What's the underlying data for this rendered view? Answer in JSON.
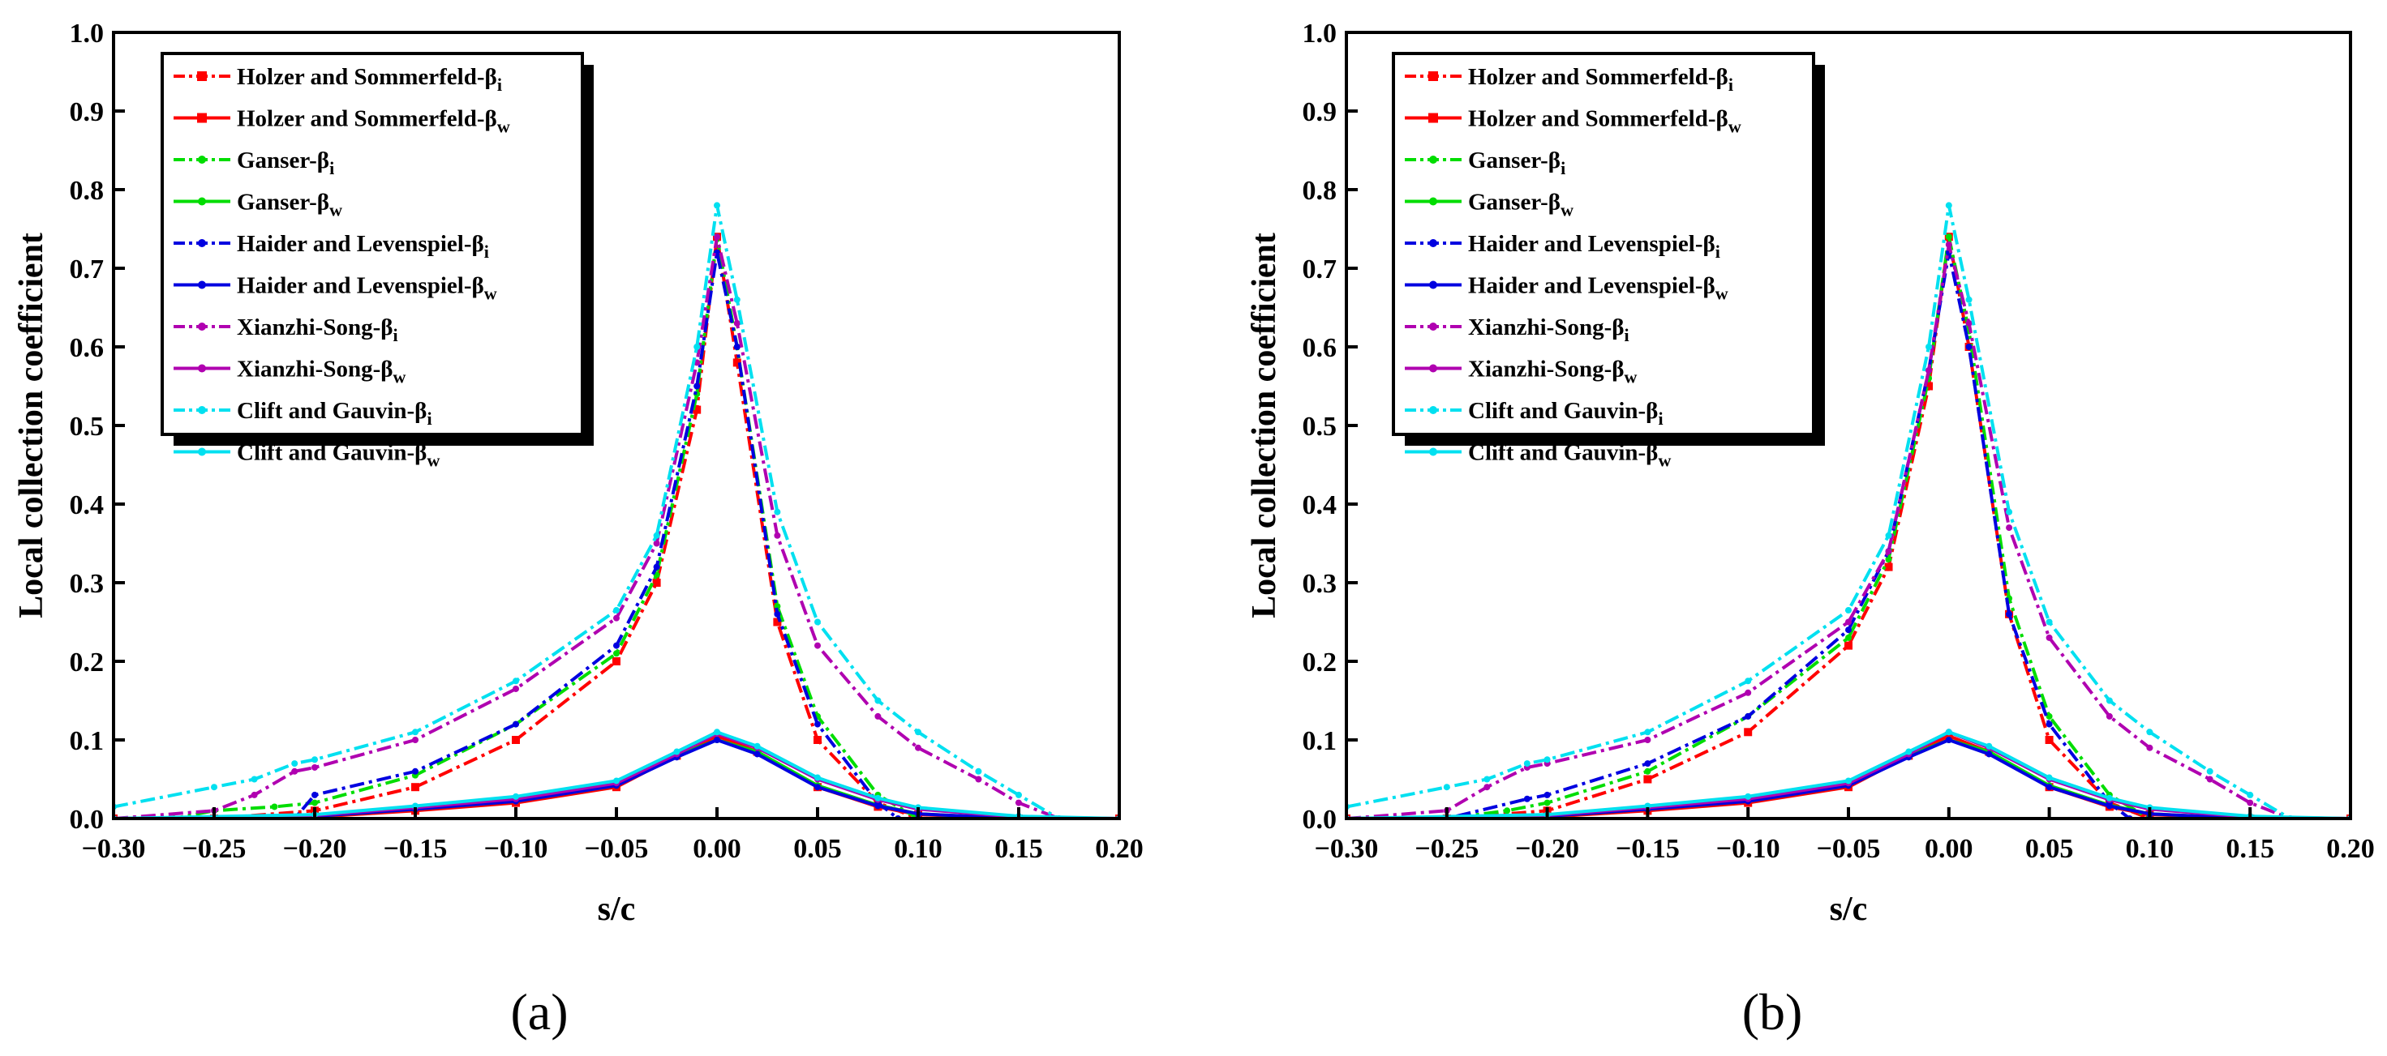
{
  "chart_data": [
    {
      "panel_label": "(a)",
      "type": "line",
      "xlabel": "s/c",
      "ylabel": "Local collection coefficient",
      "xlim": [
        -0.3,
        0.2
      ],
      "ylim": [
        0.0,
        1.0
      ],
      "xticks": [
        "−0.30",
        "−0.25",
        "−0.20",
        "−0.15",
        "−0.10",
        "−0.05",
        "0.00",
        "0.05",
        "0.10",
        "0.15",
        "0.20"
      ],
      "yticks": [
        "0.0",
        "0.1",
        "0.2",
        "0.3",
        "0.4",
        "0.5",
        "0.6",
        "0.7",
        "0.8",
        "0.9",
        "1.0"
      ],
      "legend_position": "top-left",
      "series": [
        {
          "name": "Holzer and Sommerfeld-β",
          "sub": "i",
          "color": "#ff0000",
          "style": "dashdot",
          "marker": "square",
          "x": [
            -0.3,
            -0.25,
            -0.2,
            -0.15,
            -0.1,
            -0.05,
            -0.03,
            -0.01,
            0.0,
            0.01,
            0.03,
            0.05,
            0.08,
            0.1,
            0.15,
            0.2
          ],
          "y": [
            0.0,
            0.0,
            0.01,
            0.04,
            0.1,
            0.2,
            0.3,
            0.52,
            0.74,
            0.58,
            0.25,
            0.1,
            0.02,
            0.0,
            0.0,
            0.0
          ]
        },
        {
          "name": "Holzer and Sommerfeld-β",
          "sub": "w",
          "color": "#ff0000",
          "style": "solid",
          "marker": "square",
          "x": [
            -0.3,
            -0.2,
            -0.15,
            -0.1,
            -0.05,
            -0.02,
            0.0,
            0.02,
            0.05,
            0.08,
            0.1,
            0.15,
            0.2
          ],
          "y": [
            0.0,
            0.002,
            0.01,
            0.02,
            0.04,
            0.08,
            0.105,
            0.085,
            0.04,
            0.015,
            0.005,
            0.0,
            0.0
          ]
        },
        {
          "name": "Ganser-β",
          "sub": "i",
          "color": "#00dd00",
          "style": "dashdot",
          "marker": "dot",
          "x": [
            -0.3,
            -0.27,
            -0.25,
            -0.22,
            -0.2,
            -0.15,
            -0.1,
            -0.05,
            -0.03,
            -0.01,
            0.0,
            0.01,
            0.03,
            0.05,
            0.08,
            0.1,
            0.15,
            0.2
          ],
          "y": [
            0.0,
            0.0,
            0.01,
            0.015,
            0.02,
            0.055,
            0.12,
            0.21,
            0.31,
            0.54,
            0.74,
            0.6,
            0.27,
            0.13,
            0.03,
            0.0,
            0.0,
            0.0
          ]
        },
        {
          "name": "Ganser-β",
          "sub": "w",
          "color": "#00dd00",
          "style": "solid",
          "marker": "dot",
          "x": [
            -0.3,
            -0.2,
            -0.15,
            -0.1,
            -0.05,
            -0.02,
            0.0,
            0.02,
            0.05,
            0.08,
            0.1,
            0.15,
            0.2
          ],
          "y": [
            0.0,
            0.003,
            0.012,
            0.022,
            0.042,
            0.08,
            0.1,
            0.085,
            0.042,
            0.017,
            0.006,
            0.0,
            0.0
          ]
        },
        {
          "name": "Haider and Levenspiel-β",
          "sub": "i",
          "color": "#0000e0",
          "style": "dashdot",
          "marker": "dot",
          "x": [
            -0.3,
            -0.25,
            -0.21,
            -0.2,
            -0.15,
            -0.1,
            -0.05,
            -0.03,
            -0.01,
            0.0,
            0.01,
            0.03,
            0.05,
            0.08,
            0.09,
            0.1,
            0.15,
            0.2
          ],
          "y": [
            0.0,
            0.0,
            0.0,
            0.03,
            0.06,
            0.12,
            0.22,
            0.32,
            0.55,
            0.72,
            0.6,
            0.26,
            0.12,
            0.02,
            0.0,
            0.0,
            0.0,
            0.0
          ]
        },
        {
          "name": "Haider and Levenspiel-β",
          "sub": "w",
          "color": "#0000e0",
          "style": "solid",
          "marker": "dot",
          "x": [
            -0.3,
            -0.2,
            -0.15,
            -0.1,
            -0.05,
            -0.02,
            0.0,
            0.02,
            0.05,
            0.08,
            0.1,
            0.15,
            0.2
          ],
          "y": [
            0.0,
            0.003,
            0.012,
            0.022,
            0.042,
            0.078,
            0.1,
            0.082,
            0.04,
            0.016,
            0.006,
            0.0,
            0.0
          ]
        },
        {
          "name": "Xianzhi-Song-β",
          "sub": "i",
          "color": "#b000b0",
          "style": "dashdot",
          "marker": "dot",
          "x": [
            -0.3,
            -0.25,
            -0.23,
            -0.21,
            -0.2,
            -0.15,
            -0.1,
            -0.05,
            -0.03,
            -0.01,
            0.0,
            0.01,
            0.03,
            0.05,
            0.08,
            0.1,
            0.13,
            0.15,
            0.17,
            0.2
          ],
          "y": [
            0.0,
            0.01,
            0.03,
            0.06,
            0.065,
            0.1,
            0.165,
            0.255,
            0.35,
            0.58,
            0.74,
            0.63,
            0.36,
            0.22,
            0.13,
            0.09,
            0.05,
            0.02,
            0.0,
            0.0
          ]
        },
        {
          "name": "Xianzhi-Song-β",
          "sub": "w",
          "color": "#b000b0",
          "style": "solid",
          "marker": "dot",
          "x": [
            -0.3,
            -0.2,
            -0.15,
            -0.1,
            -0.05,
            -0.02,
            0.0,
            0.02,
            0.05,
            0.08,
            0.1,
            0.15,
            0.2
          ],
          "y": [
            0.0,
            0.004,
            0.014,
            0.025,
            0.045,
            0.082,
            0.108,
            0.09,
            0.05,
            0.024,
            0.012,
            0.002,
            0.0
          ]
        },
        {
          "name": "Clift and Gauvin-β",
          "sub": "i",
          "color": "#00e0f0",
          "style": "dashdot",
          "marker": "dot",
          "x": [
            -0.3,
            -0.25,
            -0.23,
            -0.21,
            -0.2,
            -0.15,
            -0.1,
            -0.05,
            -0.03,
            -0.01,
            0.0,
            0.01,
            0.03,
            0.05,
            0.08,
            0.1,
            0.13,
            0.15,
            0.17,
            0.2
          ],
          "y": [
            0.015,
            0.04,
            0.05,
            0.07,
            0.075,
            0.11,
            0.175,
            0.265,
            0.36,
            0.6,
            0.78,
            0.66,
            0.39,
            0.25,
            0.15,
            0.11,
            0.06,
            0.03,
            0.0,
            0.0
          ]
        },
        {
          "name": "Clift and Gauvin-β",
          "sub": "w",
          "color": "#00e0f0",
          "style": "solid",
          "marker": "dot",
          "x": [
            -0.3,
            -0.2,
            -0.15,
            -0.1,
            -0.05,
            -0.02,
            0.0,
            0.02,
            0.05,
            0.08,
            0.1,
            0.15,
            0.2
          ],
          "y": [
            0.0,
            0.005,
            0.016,
            0.028,
            0.048,
            0.085,
            0.11,
            0.092,
            0.052,
            0.026,
            0.014,
            0.003,
            0.0
          ]
        }
      ]
    },
    {
      "panel_label": "(b)",
      "type": "line",
      "xlabel": "s/c",
      "ylabel": "Local collection coefficient",
      "xlim": [
        -0.3,
        0.2
      ],
      "ylim": [
        0.0,
        1.0
      ],
      "xticks": [
        "−0.30",
        "−0.25",
        "−0.20",
        "−0.15",
        "−0.10",
        "−0.05",
        "0.00",
        "0.05",
        "0.10",
        "0.15",
        "0.20"
      ],
      "yticks": [
        "0.0",
        "0.1",
        "0.2",
        "0.3",
        "0.4",
        "0.5",
        "0.6",
        "0.7",
        "0.8",
        "0.9",
        "1.0"
      ],
      "legend_position": "top-left",
      "series": [
        {
          "name": "Holzer and Sommerfeld-β",
          "sub": "i",
          "color": "#ff0000",
          "style": "dashdot",
          "marker": "square",
          "x": [
            -0.3,
            -0.25,
            -0.2,
            -0.15,
            -0.1,
            -0.05,
            -0.03,
            -0.01,
            0.0,
            0.01,
            0.03,
            0.05,
            0.08,
            0.1,
            0.15,
            0.2
          ],
          "y": [
            0.0,
            0.0,
            0.01,
            0.05,
            0.11,
            0.22,
            0.32,
            0.55,
            0.74,
            0.6,
            0.26,
            0.1,
            0.02,
            0.0,
            0.0,
            0.0
          ]
        },
        {
          "name": "Holzer and Sommerfeld-β",
          "sub": "w",
          "color": "#ff0000",
          "style": "solid",
          "marker": "square",
          "x": [
            -0.3,
            -0.2,
            -0.15,
            -0.1,
            -0.05,
            -0.02,
            0.0,
            0.02,
            0.05,
            0.08,
            0.1,
            0.15,
            0.2
          ],
          "y": [
            0.0,
            0.002,
            0.01,
            0.02,
            0.04,
            0.08,
            0.105,
            0.085,
            0.04,
            0.015,
            0.005,
            0.0,
            0.0
          ]
        },
        {
          "name": "Ganser-β",
          "sub": "i",
          "color": "#00dd00",
          "style": "dashdot",
          "marker": "dot",
          "x": [
            -0.3,
            -0.25,
            -0.22,
            -0.2,
            -0.15,
            -0.1,
            -0.05,
            -0.03,
            -0.01,
            0.0,
            0.01,
            0.03,
            0.05,
            0.08,
            0.1,
            0.15,
            0.2
          ],
          "y": [
            0.0,
            0.0,
            0.01,
            0.02,
            0.06,
            0.13,
            0.23,
            0.33,
            0.56,
            0.74,
            0.62,
            0.28,
            0.13,
            0.03,
            0.0,
            0.0,
            0.0
          ]
        },
        {
          "name": "Ganser-β",
          "sub": "w",
          "color": "#00dd00",
          "style": "solid",
          "marker": "dot",
          "x": [
            -0.3,
            -0.2,
            -0.15,
            -0.1,
            -0.05,
            -0.02,
            0.0,
            0.02,
            0.05,
            0.08,
            0.1,
            0.15,
            0.2
          ],
          "y": [
            0.0,
            0.003,
            0.012,
            0.022,
            0.042,
            0.08,
            0.1,
            0.085,
            0.042,
            0.017,
            0.006,
            0.0,
            0.0
          ]
        },
        {
          "name": "Haider and Levenspiel-β",
          "sub": "i",
          "color": "#0000e0",
          "style": "dashdot",
          "marker": "dot",
          "x": [
            -0.3,
            -0.25,
            -0.21,
            -0.2,
            -0.15,
            -0.1,
            -0.05,
            -0.03,
            -0.01,
            0.0,
            0.01,
            0.03,
            0.05,
            0.08,
            0.09,
            0.1,
            0.15,
            0.2
          ],
          "y": [
            0.0,
            0.0,
            0.025,
            0.03,
            0.07,
            0.13,
            0.24,
            0.34,
            0.57,
            0.72,
            0.6,
            0.26,
            0.12,
            0.02,
            0.0,
            0.0,
            0.0,
            0.0
          ]
        },
        {
          "name": "Haider and Levenspiel-β",
          "sub": "w",
          "color": "#0000e0",
          "style": "solid",
          "marker": "dot",
          "x": [
            -0.3,
            -0.2,
            -0.15,
            -0.1,
            -0.05,
            -0.02,
            0.0,
            0.02,
            0.05,
            0.08,
            0.1,
            0.15,
            0.2
          ],
          "y": [
            0.0,
            0.003,
            0.012,
            0.022,
            0.042,
            0.078,
            0.1,
            0.082,
            0.04,
            0.016,
            0.006,
            0.0,
            0.0
          ]
        },
        {
          "name": "Xianzhi-Song-β",
          "sub": "i",
          "color": "#b000b0",
          "style": "dashdot",
          "marker": "dot",
          "x": [
            -0.3,
            -0.25,
            -0.23,
            -0.21,
            -0.2,
            -0.15,
            -0.1,
            -0.05,
            -0.03,
            -0.01,
            0.0,
            0.01,
            0.03,
            0.05,
            0.08,
            0.1,
            0.13,
            0.15,
            0.17,
            0.2
          ],
          "y": [
            0.0,
            0.01,
            0.04,
            0.065,
            0.07,
            0.1,
            0.16,
            0.25,
            0.34,
            0.57,
            0.73,
            0.63,
            0.37,
            0.23,
            0.13,
            0.09,
            0.05,
            0.02,
            0.0,
            0.0
          ]
        },
        {
          "name": "Xianzhi-Song-β",
          "sub": "w",
          "color": "#b000b0",
          "style": "solid",
          "marker": "dot",
          "x": [
            -0.3,
            -0.2,
            -0.15,
            -0.1,
            -0.05,
            -0.02,
            0.0,
            0.02,
            0.05,
            0.08,
            0.1,
            0.15,
            0.2
          ],
          "y": [
            0.0,
            0.004,
            0.014,
            0.025,
            0.045,
            0.082,
            0.11,
            0.09,
            0.05,
            0.024,
            0.012,
            0.002,
            0.0
          ]
        },
        {
          "name": "Clift and Gauvin-β",
          "sub": "i",
          "color": "#00e0f0",
          "style": "dashdot",
          "marker": "dot",
          "x": [
            -0.3,
            -0.25,
            -0.23,
            -0.21,
            -0.2,
            -0.15,
            -0.1,
            -0.05,
            -0.03,
            -0.01,
            0.0,
            0.01,
            0.03,
            0.05,
            0.08,
            0.1,
            0.13,
            0.15,
            0.17,
            0.2
          ],
          "y": [
            0.015,
            0.04,
            0.05,
            0.07,
            0.075,
            0.11,
            0.175,
            0.265,
            0.36,
            0.6,
            0.78,
            0.66,
            0.39,
            0.25,
            0.15,
            0.11,
            0.06,
            0.03,
            0.0,
            0.0
          ]
        },
        {
          "name": "Clift and Gauvin-β",
          "sub": "w",
          "color": "#00e0f0",
          "style": "solid",
          "marker": "dot",
          "x": [
            -0.3,
            -0.2,
            -0.15,
            -0.1,
            -0.05,
            -0.02,
            0.0,
            0.02,
            0.05,
            0.08,
            0.1,
            0.15,
            0.2
          ],
          "y": [
            0.0,
            0.005,
            0.016,
            0.028,
            0.048,
            0.085,
            0.11,
            0.092,
            0.052,
            0.026,
            0.014,
            0.003,
            0.0
          ]
        }
      ]
    }
  ]
}
